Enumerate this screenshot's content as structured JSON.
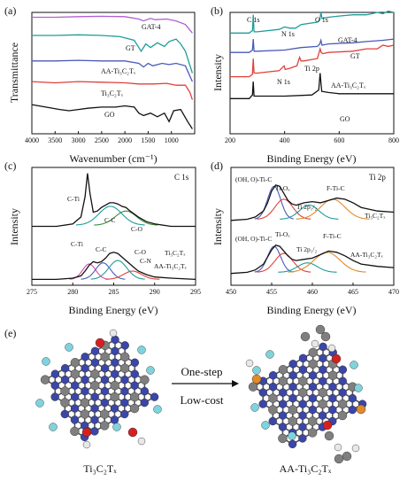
{
  "chart_data": [
    {
      "panel": "(a)",
      "type": "line",
      "xlabel": "Wavenumber (cm⁻¹)",
      "ylabel": "Transmittance",
      "xlim": [
        4000,
        500
      ],
      "xticks": [
        4000,
        3500,
        3000,
        2500,
        2000,
        1500,
        1000
      ],
      "series": [
        {
          "name": "GAT-4",
          "color": "#b15fcf",
          "x": [
            4000,
            3500,
            3000,
            2500,
            2000,
            1700,
            1600,
            1450,
            1350,
            1100,
            900,
            700,
            550
          ],
          "y": [
            0.96,
            0.96,
            0.965,
            0.968,
            0.965,
            0.945,
            0.93,
            0.95,
            0.94,
            0.945,
            0.93,
            0.9,
            0.83
          ]
        },
        {
          "name": "GT",
          "color": "#1f9d9a",
          "x": [
            4000,
            3500,
            3000,
            2500,
            2100,
            1800,
            1650,
            1550,
            1450,
            1300,
            1150,
            1050,
            900,
            800,
            700,
            550
          ],
          "y": [
            0.81,
            0.81,
            0.815,
            0.81,
            0.8,
            0.77,
            0.68,
            0.74,
            0.71,
            0.75,
            0.72,
            0.76,
            0.78,
            0.74,
            0.68,
            0.5
          ]
        },
        {
          "name": "AA-Ti₃C₂Tₓ",
          "color": "#4a5ab8",
          "x": [
            4000,
            3500,
            3000,
            2500,
            2000,
            1700,
            1600,
            1500,
            1400,
            1200,
            1050,
            900,
            700,
            550
          ],
          "y": [
            0.6,
            0.6,
            0.605,
            0.6,
            0.6,
            0.58,
            0.55,
            0.58,
            0.56,
            0.58,
            0.57,
            0.58,
            0.56,
            0.43
          ]
        },
        {
          "name": "Ti₃C₂Tₓ",
          "color": "#e0403a",
          "x": [
            4000,
            3500,
            3000,
            2500,
            2000,
            1700,
            1400,
            1100,
            900,
            700,
            600,
            550
          ],
          "y": [
            0.43,
            0.42,
            0.43,
            0.425,
            0.42,
            0.41,
            0.41,
            0.415,
            0.4,
            0.4,
            0.34,
            0.28
          ]
        },
        {
          "name": "GO",
          "color": "#111111",
          "x": [
            4000,
            3700,
            3400,
            3200,
            3000,
            2800,
            2500,
            2200,
            2000,
            1800,
            1700,
            1600,
            1450,
            1300,
            1150,
            1050,
            950,
            800,
            650,
            550
          ],
          "y": [
            0.24,
            0.22,
            0.2,
            0.19,
            0.2,
            0.21,
            0.22,
            0.22,
            0.23,
            0.22,
            0.17,
            0.15,
            0.17,
            0.14,
            0.17,
            0.1,
            0.19,
            0.2,
            0.1,
            0.04
          ]
        }
      ]
    },
    {
      "panel": "(b)",
      "type": "line",
      "xlabel": "Binding Energy (eV)",
      "ylabel": "Intensity",
      "xlim": [
        200,
        800
      ],
      "xticks": [
        200,
        400,
        600,
        800
      ],
      "annotations": [
        "C 1s",
        "O 1s",
        "N 1s",
        "N 1s",
        "Ti 2p"
      ],
      "series": [
        {
          "name": "GAT-4",
          "color": "#1f9d9a",
          "x": [
            200,
            270,
            282,
            285,
            288,
            300,
            380,
            400,
            420,
            440,
            460,
            520,
            529,
            533,
            537,
            560,
            600,
            650,
            700,
            740,
            760,
            780,
            800
          ],
          "y": [
            0.83,
            0.83,
            0.85,
            0.98,
            0.84,
            0.84,
            0.86,
            0.88,
            0.87,
            0.87,
            0.9,
            0.92,
            0.94,
            1.0,
            0.95,
            0.96,
            0.97,
            0.98,
            0.98,
            1.0,
            0.99,
            1.01,
            1.0
          ]
        },
        {
          "name": "GT",
          "color": "#4a5ab8",
          "x": [
            200,
            270,
            282,
            285,
            288,
            300,
            400,
            460,
            520,
            529,
            533,
            537,
            560,
            650,
            700,
            760,
            800
          ],
          "y": [
            0.67,
            0.67,
            0.69,
            0.78,
            0.68,
            0.68,
            0.69,
            0.71,
            0.72,
            0.74,
            0.77,
            0.73,
            0.74,
            0.75,
            0.76,
            0.77,
            0.78
          ]
        },
        {
          "name": "AA-Ti₃C₂Tₓ",
          "color": "#e0403a",
          "x": [
            200,
            270,
            282,
            285,
            288,
            300,
            380,
            398,
            402,
            420,
            445,
            455,
            460,
            470,
            520,
            530,
            534,
            540,
            560,
            650,
            700,
            740,
            760,
            780,
            800
          ],
          "y": [
            0.47,
            0.47,
            0.49,
            0.62,
            0.5,
            0.5,
            0.52,
            0.56,
            0.53,
            0.54,
            0.56,
            0.63,
            0.6,
            0.6,
            0.62,
            0.7,
            0.67,
            0.66,
            0.67,
            0.68,
            0.7,
            0.7,
            0.73,
            0.72,
            0.73
          ]
        },
        {
          "name": "GO",
          "color": "#111111",
          "x": [
            200,
            270,
            282,
            285,
            288,
            300,
            400,
            500,
            525,
            530,
            533,
            536,
            560,
            600,
            700,
            760,
            800
          ],
          "y": [
            0.29,
            0.29,
            0.32,
            0.43,
            0.31,
            0.31,
            0.31,
            0.32,
            0.36,
            0.5,
            0.42,
            0.35,
            0.34,
            0.33,
            0.33,
            0.33,
            0.33
          ]
        }
      ]
    },
    {
      "panel": "(c)",
      "type": "line",
      "xlabel": "Binding Energy (eV)",
      "ylabel": "Intensity",
      "title": "C 1s",
      "xlim": [
        275,
        295
      ],
      "xticks": [
        275,
        280,
        285,
        290,
        295
      ],
      "labels": {
        "top": [
          "C-Ti",
          "C-C",
          "C-O",
          "Ti₃C₂Tₓ"
        ],
        "bottom": [
          "C-Ti",
          "C-C",
          "C-O",
          "C-N",
          "AA-Ti₃C₂Tₓ"
        ]
      },
      "series": [
        {
          "name": "Ti₃C₂Tₓ",
          "color": "#111111",
          "x": [
            275,
            278,
            280,
            281,
            281.5,
            281.8,
            282.1,
            282.5,
            283,
            283.5,
            284,
            284.5,
            285,
            285.5,
            286,
            286.5,
            287,
            288,
            289,
            290,
            292,
            295
          ],
          "y": [
            0.5,
            0.5,
            0.52,
            0.58,
            0.75,
            0.95,
            0.78,
            0.62,
            0.63,
            0.66,
            0.68,
            0.7,
            0.7,
            0.69,
            0.67,
            0.66,
            0.63,
            0.58,
            0.54,
            0.52,
            0.5,
            0.5
          ]
        },
        {
          "name": "AA-Ti₃C₂Tₓ",
          "color": "#111111",
          "x": [
            275,
            278,
            280,
            281,
            281.5,
            282,
            282.5,
            283,
            283.5,
            284,
            284.5,
            285,
            285.5,
            286,
            286.5,
            287,
            287.5,
            288,
            289,
            290,
            292,
            295
          ],
          "y": [
            0.05,
            0.05,
            0.06,
            0.08,
            0.12,
            0.17,
            0.2,
            0.19,
            0.2,
            0.23,
            0.27,
            0.28,
            0.27,
            0.24,
            0.21,
            0.18,
            0.15,
            0.12,
            0.09,
            0.07,
            0.06,
            0.05
          ]
        }
      ]
    },
    {
      "panel": "(d)",
      "type": "line",
      "xlabel": "Binding Energy (eV)",
      "ylabel": "Intensity",
      "title": "Ti 2p",
      "xlim": [
        450,
        470
      ],
      "xticks": [
        450,
        455,
        460,
        465,
        470
      ],
      "labels": {
        "top": [
          "(OH, O)-Ti-C",
          "Ti-Oₓ",
          "Ti 2p₁/₂",
          "F-Ti-C",
          "Ti₃C₂Tₓ"
        ],
        "bottom": [
          "(OH, O)-Ti-C",
          "Ti-Oₓ",
          "Ti 2p₁/₂",
          "F-Ti-C",
          "AA-Ti₃C₂Tₓ"
        ]
      },
      "series": [
        {
          "name": "Ti₃C₂Tₓ",
          "color": "#111111",
          "x": [
            450,
            452,
            453,
            454,
            454.5,
            455,
            455.5,
            456,
            456.5,
            457,
            457.5,
            458,
            459,
            460,
            461,
            462,
            463,
            464,
            465,
            466,
            468,
            470
          ],
          "y": [
            0.55,
            0.56,
            0.58,
            0.63,
            0.7,
            0.8,
            0.85,
            0.84,
            0.78,
            0.72,
            0.69,
            0.68,
            0.7,
            0.71,
            0.7,
            0.72,
            0.74,
            0.73,
            0.7,
            0.66,
            0.63,
            0.62
          ]
        },
        {
          "name": "AA-Ti₃C₂Tₓ",
          "color": "#111111",
          "x": [
            450,
            452,
            453,
            454,
            454.5,
            455,
            455.5,
            456,
            456.5,
            457,
            457.5,
            458,
            459,
            460,
            461,
            462,
            463,
            464,
            465,
            466,
            468,
            470
          ],
          "y": [
            0.1,
            0.11,
            0.13,
            0.18,
            0.24,
            0.3,
            0.34,
            0.33,
            0.29,
            0.25,
            0.22,
            0.21,
            0.22,
            0.23,
            0.26,
            0.29,
            0.28,
            0.25,
            0.21,
            0.18,
            0.16,
            0.15
          ]
        }
      ]
    }
  ],
  "figure": {
    "panel_a_label": "(a)",
    "panel_b_label": "(b)",
    "panel_c_label": "(c)",
    "panel_d_label": "(d)",
    "panel_e_label": "(e)",
    "a_xlabel": "Wavenumber (cm⁻¹)",
    "a_ylabel": "Transmittance",
    "b_xlabel": "Binding Energy (eV)",
    "b_ylabel": "Intensity",
    "c_xlabel": "Binding Energy (eV)",
    "c_ylabel": "Intensity",
    "d_xlabel": "Binding Energy (eV)",
    "d_ylabel": "Intensity",
    "c_title": "C 1s",
    "d_title": "Ti 2p",
    "b_c1s": "C 1s",
    "b_o1s": "O 1s",
    "b_n1s_top": "N 1s",
    "b_n1s_mid": "N 1s",
    "b_ti2p": "Ti 2p",
    "e_arrow_top": "One-step",
    "e_arrow_bottom": "Low-cost",
    "e_left_caption": "Ti₃C₂Tₓ",
    "e_right_caption": "AA-Ti₃C₂Tₓ"
  }
}
